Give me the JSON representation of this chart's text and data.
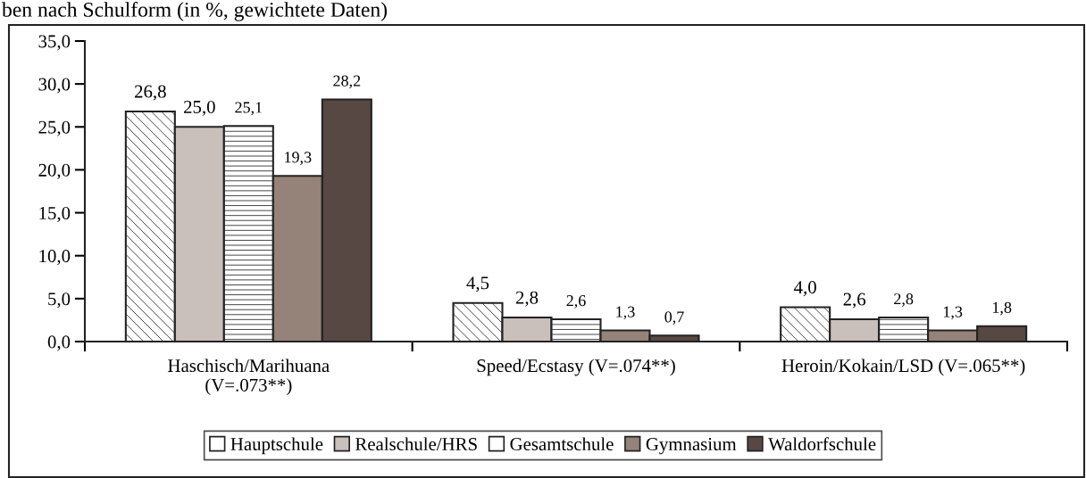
{
  "chart_data": {
    "type": "bar",
    "title": "ben nach Schulform (in %, gewichtete Daten)",
    "categories": [
      "Haschisch/Marihuana\n(V=.073**)",
      "Speed/Ecstasy (V=.074**)",
      "Heroin/Kokain/LSD (V=.065**)"
    ],
    "series": [
      {
        "name": "Hauptschule",
        "color": "#ffffff",
        "values": [
          26.8,
          4.5,
          4.0
        ]
      },
      {
        "name": "Realschule/HRS",
        "color": "#c9bfbb",
        "values": [
          25.0,
          2.8,
          2.6
        ]
      },
      {
        "name": "Gesamtschule",
        "color": "#ffffff",
        "values": [
          25.1,
          2.6,
          2.8
        ]
      },
      {
        "name": "Gymnasium",
        "color": "#958279",
        "values": [
          19.3,
          1.3,
          1.3
        ]
      },
      {
        "name": "Waldorfschule",
        "color": "#574843",
        "values": [
          28.2,
          0.7,
          1.8
        ]
      }
    ],
    "ylim": [
      0,
      35
    ],
    "yticks": [
      {
        "value": 0,
        "label": "0,0"
      },
      {
        "value": 5,
        "label": "5,0"
      },
      {
        "value": 10,
        "label": "10,0"
      },
      {
        "value": 15,
        "label": "15,0"
      },
      {
        "value": 20,
        "label": "20,0"
      },
      {
        "value": 25,
        "label": "25,0"
      },
      {
        "value": 30,
        "label": "30,0"
      },
      {
        "value": 35,
        "label": "35,0"
      }
    ],
    "value_labels": [
      [
        "26,8",
        "4,5",
        "4,0"
      ],
      [
        "25,0",
        "2,8",
        "2,6"
      ],
      [
        "25,1",
        "2,6",
        "2,8"
      ],
      [
        "19,3",
        "1,3",
        "1,3"
      ],
      [
        "28,2",
        "0,7",
        "1,8"
      ]
    ],
    "grid": false,
    "legend": "bottom"
  }
}
